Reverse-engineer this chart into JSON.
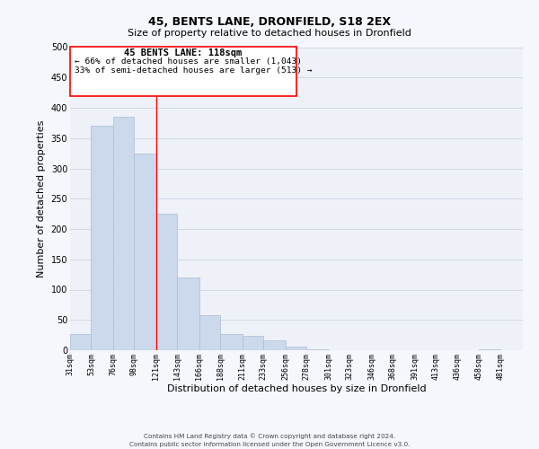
{
  "title": "45, BENTS LANE, DRONFIELD, S18 2EX",
  "subtitle": "Size of property relative to detached houses in Dronfield",
  "xlabel": "Distribution of detached houses by size in Dronfield",
  "ylabel": "Number of detached properties",
  "bar_left_edges": [
    31,
    53,
    76,
    98,
    121,
    143,
    166,
    188,
    211,
    233,
    256,
    278,
    301,
    323,
    346,
    368,
    391,
    413,
    436,
    458
  ],
  "bar_heights": [
    27,
    370,
    385,
    325,
    225,
    120,
    58,
    27,
    23,
    17,
    6,
    1,
    0,
    0,
    0,
    0,
    0,
    0,
    0,
    2
  ],
  "bar_widths": [
    22,
    23,
    22,
    23,
    22,
    23,
    22,
    23,
    22,
    23,
    22,
    23,
    22,
    23,
    22,
    23,
    22,
    23,
    22,
    23
  ],
  "bar_color": "#ccd9ed",
  "bar_edge_color": "#aabbd4",
  "ylim": [
    0,
    500
  ],
  "xlim": [
    31,
    504
  ],
  "yticks": [
    0,
    50,
    100,
    150,
    200,
    250,
    300,
    350,
    400,
    450,
    500
  ],
  "tick_labels": [
    "31sqm",
    "53sqm",
    "76sqm",
    "98sqm",
    "121sqm",
    "143sqm",
    "166sqm",
    "188sqm",
    "211sqm",
    "233sqm",
    "256sqm",
    "278sqm",
    "301sqm",
    "323sqm",
    "346sqm",
    "368sqm",
    "391sqm",
    "413sqm",
    "436sqm",
    "458sqm",
    "481sqm"
  ],
  "tick_positions": [
    31,
    53,
    76,
    98,
    121,
    143,
    166,
    188,
    211,
    233,
    256,
    278,
    301,
    323,
    346,
    368,
    391,
    413,
    436,
    458,
    481
  ],
  "property_line_x": 121,
  "annotation_title": "45 BENTS LANE: 118sqm",
  "annotation_line1": "← 66% of detached houses are smaller (1,043)",
  "annotation_line2": "33% of semi-detached houses are larger (513) →",
  "footer_line1": "Contains HM Land Registry data © Crown copyright and database right 2024.",
  "footer_line2": "Contains public sector information licensed under the Open Government Licence v3.0.",
  "grid_color": "#d0d8e8",
  "bg_color": "#eef2f8",
  "fig_bg_color": "#f5f7fc"
}
